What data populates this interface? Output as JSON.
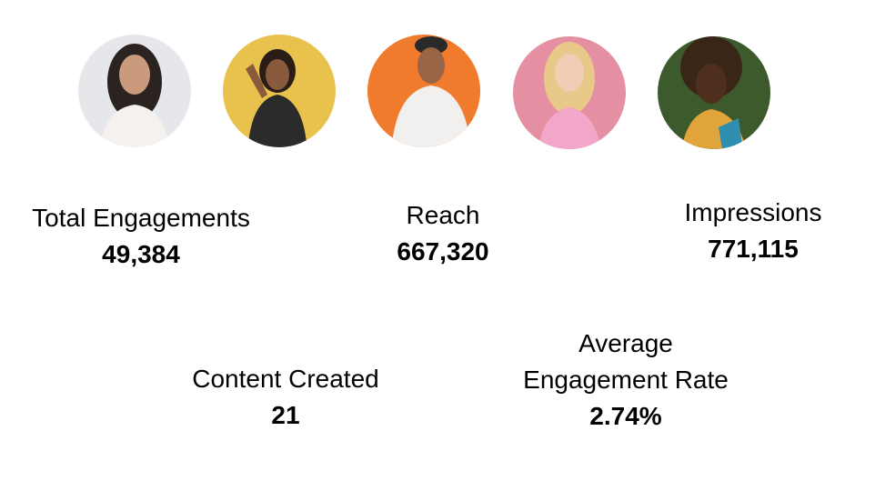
{
  "metrics": [
    {
      "label": "Total Engagements",
      "value": "49,384"
    },
    {
      "label": "Reach",
      "value": "667,320"
    },
    {
      "label": "Impressions",
      "value": "771,115"
    },
    {
      "label": "Content Created",
      "value": "21"
    },
    {
      "label": "Average Engagement Rate",
      "value": "2.74%"
    }
  ]
}
